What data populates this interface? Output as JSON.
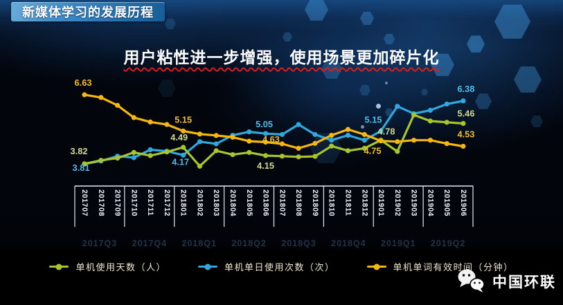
{
  "header": {
    "title": "新媒体学习的发展历程"
  },
  "subtitle": {
    "text": "用户粘性进一步增强，使用场景更加碎片化",
    "underline_color": "#d61f1f"
  },
  "chart_data": {
    "type": "line",
    "title": "",
    "xlabel": "",
    "ylabel": "",
    "ylim": [
      3.4,
      7.0
    ],
    "grid": "quarter-separator-lines",
    "legend_position": "bottom",
    "categories": [
      "201707",
      "201708",
      "201709",
      "201710",
      "201711",
      "201712",
      "201801",
      "201802",
      "201803",
      "201804",
      "201805",
      "201806",
      "201807",
      "201808",
      "201809",
      "201810",
      "201811",
      "201812",
      "201901",
      "201902",
      "201903",
      "201904",
      "201905",
      "201906"
    ],
    "quarter_labels": [
      "2017Q3",
      "2017Q4",
      "2018Q1",
      "2018Q2",
      "2018Q3",
      "2018Q4",
      "2019Q1",
      "2019Q2"
    ],
    "series": [
      {
        "name": "单机使用天数（人）",
        "color": "#a8c52e",
        "label_color": "#d2d98c",
        "values": [
          3.82,
          3.96,
          4.05,
          4.28,
          4.15,
          4.3,
          4.49,
          3.72,
          4.35,
          4.19,
          4.28,
          4.15,
          4.13,
          4.1,
          4.12,
          4.54,
          4.35,
          4.45,
          4.78,
          4.32,
          5.81,
          5.56,
          5.51,
          5.46
        ],
        "labels": [
          {
            "i": 0,
            "text": "3.82",
            "dx": -8,
            "dy": -14
          },
          {
            "i": 6,
            "text": "4.49",
            "dx": -6,
            "dy": -10
          },
          {
            "i": 11,
            "text": "4.15",
            "dx": 0,
            "dy": 19
          },
          {
            "i": 18,
            "text": "4.78",
            "dx": 8,
            "dy": -8
          },
          {
            "i": 23,
            "text": "5.46",
            "dx": 4,
            "dy": -10
          }
        ]
      },
      {
        "name": "单机单日使用次数（次）",
        "color": "#2fa9dd",
        "label_color": "#4fbce8",
        "values": [
          3.81,
          3.93,
          4.13,
          4.07,
          4.39,
          4.33,
          4.17,
          4.72,
          4.63,
          4.98,
          5.12,
          5.05,
          5.01,
          5.42,
          5.01,
          4.78,
          4.98,
          4.78,
          5.15,
          6.16,
          5.86,
          6.0,
          6.25,
          6.38
        ],
        "labels": [
          {
            "i": 0,
            "text": "3.81",
            "dx": -5,
            "dy": 10
          },
          {
            "i": 6,
            "text": "4.17",
            "dx": -4,
            "dy": 14
          },
          {
            "i": 11,
            "text": "5.05",
            "dx": -2,
            "dy": -9
          },
          {
            "i": 18,
            "text": "5.15",
            "dx": -11,
            "dy": -12
          },
          {
            "i": 23,
            "text": "6.38",
            "dx": 4,
            "dy": -13
          }
        ]
      },
      {
        "name": "单机单词有效时间（分钟）",
        "color": "#f6b70e",
        "label_color": "#f3bd2e",
        "values": [
          6.63,
          6.52,
          6.2,
          5.7,
          5.52,
          5.42,
          5.15,
          5.03,
          4.97,
          4.9,
          4.74,
          4.7,
          4.63,
          4.45,
          4.65,
          4.98,
          5.22,
          5.01,
          4.75,
          4.72,
          4.78,
          4.78,
          4.64,
          4.53
        ],
        "labels": [
          {
            "i": 0,
            "text": "6.63",
            "dx": -2,
            "dy": -13
          },
          {
            "i": 6,
            "text": "5.15",
            "dx": 0,
            "dy": -12
          },
          {
            "i": 12,
            "text": "4.63",
            "dx": -16,
            "dy": -2
          },
          {
            "i": 18,
            "text": "4.75",
            "dx": -12,
            "dy": 19
          },
          {
            "i": 23,
            "text": "4.53",
            "dx": 4,
            "dy": -13
          }
        ]
      }
    ]
  },
  "footer": {
    "brand": "中国环联",
    "icon": "wechat-icon"
  }
}
